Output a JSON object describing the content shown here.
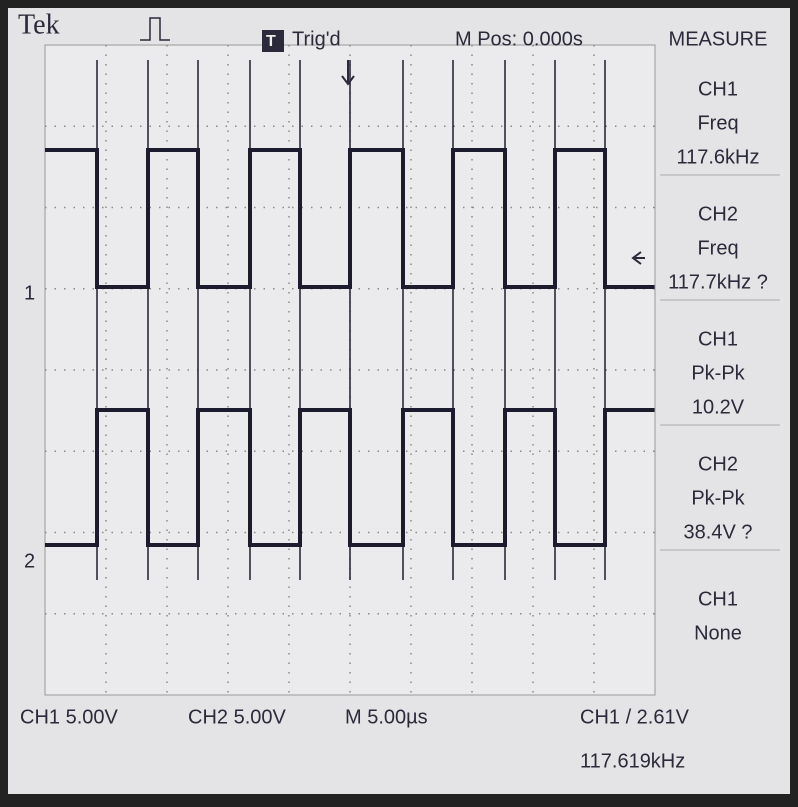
{
  "header": {
    "brand": "Tek",
    "trigger_status": "Trig'd",
    "m_pos": "M Pos: 0.000s",
    "menu_title": "MEASURE"
  },
  "measurements": [
    {
      "source": "CH1",
      "type": "Freq",
      "value": "117.6kHz"
    },
    {
      "source": "CH2",
      "type": "Freq",
      "value": "117.7kHz ?"
    },
    {
      "source": "CH1",
      "type": "Pk-Pk",
      "value": "10.2V"
    },
    {
      "source": "CH2",
      "type": "Pk-Pk",
      "value": "38.4V ?"
    },
    {
      "source": "CH1",
      "type": "None"
    }
  ],
  "channel_markers": [
    "1",
    "2"
  ],
  "footer": {
    "ch1_scale": "CH1 5.00V",
    "ch2_scale": "CH2 5.00V",
    "timebase": "M 5.00µs",
    "trigger": "CH1 / 2.61V",
    "trigger_freq": "117.619kHz"
  }
}
